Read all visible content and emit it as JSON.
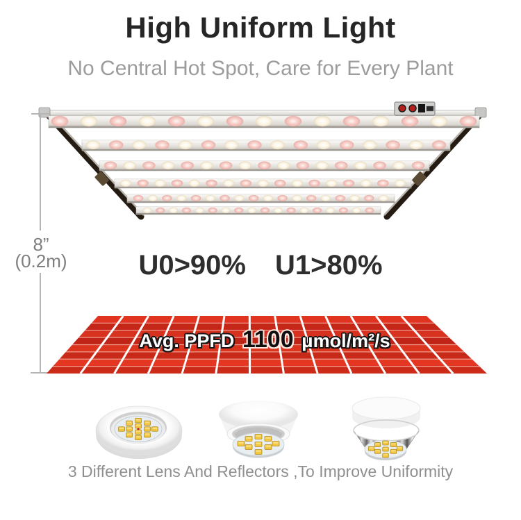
{
  "header": {
    "title": "High Uniform Light",
    "subtitle": "No Central Hot Spot, Care for Every Plant"
  },
  "dimension": {
    "inches": "8”",
    "meters": "(0.2m)"
  },
  "uniformity": {
    "u0": "U0>90%",
    "u1": "U1>80%"
  },
  "ppfd": {
    "prefix": "Avg. PPFD",
    "value": "1100",
    "unit": "μmol/m²/s"
  },
  "lenses": {
    "caption": "3 Different Lens And Reflectors ,To Improve Uniformity"
  },
  "graphics": {
    "fixture": "led-grow-light-fixture-6-bars",
    "grid": "ppfd-red-grid-plane",
    "lens_items": [
      "flat-ring-lens",
      "white-cone-reflector",
      "chrome-funnel-reflector"
    ]
  },
  "colors": {
    "grid_red": "#d32f1e",
    "title_text": "#262626",
    "subtitle_text": "#9c9c9c",
    "dimension_text": "#7e7e7e"
  }
}
